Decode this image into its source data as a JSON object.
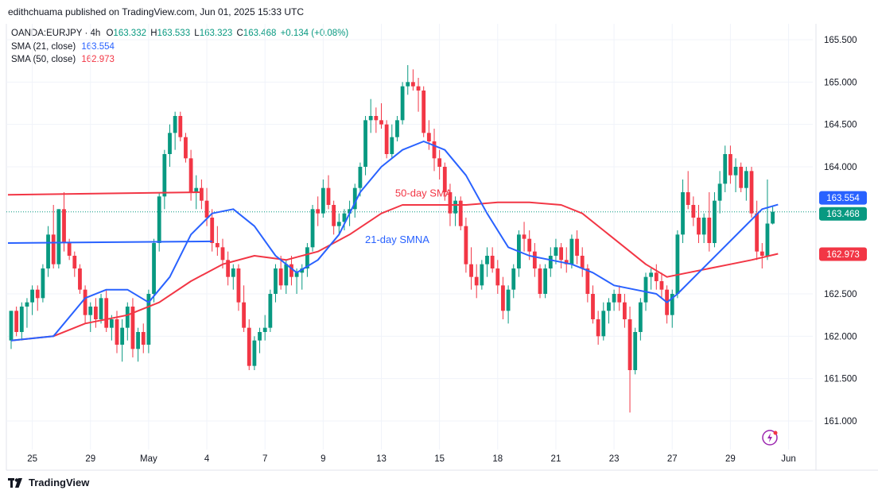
{
  "header": {
    "published": "edithchuama published on TradingView.com, Jun 01, 2025 15:33 UTC"
  },
  "legend": {
    "symbol": "OANDA:EURJPY · 4h",
    "open_label": "O",
    "open": "163.332",
    "high_label": "H",
    "high": "163.533",
    "low_label": "L",
    "low": "163.323",
    "close_label": "C",
    "close": "163.468",
    "change": "+0.134 (+0.08%)",
    "sma21_label": "SMA (21, close)",
    "sma21_value": "163.554",
    "sma50_label": "SMA (50, close)",
    "sma50_value": "162.973"
  },
  "footer": {
    "brand": "TradingView",
    "logo_icon": "tradingview-logo-icon"
  },
  "colors": {
    "up": "#089981",
    "down": "#f23645",
    "sma21": "#2962ff",
    "sma50": "#f23645",
    "grid": "#f0f3fa"
  },
  "chart_data": {
    "type": "candlestick",
    "symbol": "OANDA:EURJPY",
    "interval": "4h",
    "ylim": [
      160.7,
      165.75
    ],
    "y_ticks": [
      "165.500",
      "165.000",
      "164.500",
      "164.000",
      "162.500",
      "162.000",
      "161.500",
      "161.000"
    ],
    "x_ticks": [
      {
        "label": "25",
        "index": 4
      },
      {
        "label": "29",
        "index": 15
      },
      {
        "label": "May",
        "index": 26
      },
      {
        "label": "4",
        "index": 37
      },
      {
        "label": "7",
        "index": 48
      },
      {
        "label": "9",
        "index": 59
      },
      {
        "label": "13",
        "index": 70
      },
      {
        "label": "15",
        "index": 81
      },
      {
        "label": "18",
        "index": 92
      },
      {
        "label": "21",
        "index": 103
      },
      {
        "label": "23",
        "index": 114
      },
      {
        "label": "27",
        "index": 125
      },
      {
        "label": "29",
        "index": 136
      },
      {
        "label": "Jun",
        "index": 147
      }
    ],
    "price_labels": [
      {
        "value": 163.554,
        "text": "163.554",
        "color": "#2962ff"
      },
      {
        "value": 163.468,
        "text": "163.468",
        "color": "#089981"
      },
      {
        "value": 162.973,
        "text": "162.973",
        "color": "#f23645"
      }
    ],
    "candles": [
      [
        161.95,
        162.3,
        161.85,
        162.3
      ],
      [
        162.3,
        162.35,
        162.0,
        162.05
      ],
      [
        162.05,
        162.4,
        161.95,
        162.35
      ],
      [
        162.35,
        162.45,
        162.1,
        162.4
      ],
      [
        162.4,
        162.6,
        162.25,
        162.55
      ],
      [
        162.55,
        162.6,
        162.3,
        162.45
      ],
      [
        162.45,
        162.85,
        162.4,
        162.8
      ],
      [
        162.8,
        163.3,
        162.7,
        163.2
      ],
      [
        163.2,
        163.55,
        162.8,
        162.85
      ],
      [
        162.85,
        163.5,
        162.8,
        163.5
      ],
      [
        163.5,
        163.7,
        163.0,
        163.1
      ],
      [
        163.1,
        163.15,
        162.9,
        162.95
      ],
      [
        162.95,
        163.0,
        162.7,
        162.8
      ],
      [
        162.8,
        162.85,
        162.5,
        162.55
      ],
      [
        162.55,
        162.6,
        162.15,
        162.25
      ],
      [
        162.25,
        162.4,
        162.05,
        162.35
      ],
      [
        162.35,
        162.45,
        162.1,
        162.2
      ],
      [
        162.2,
        162.5,
        162.15,
        162.45
      ],
      [
        162.45,
        162.55,
        162.05,
        162.1
      ],
      [
        162.1,
        162.25,
        161.95,
        162.2
      ],
      [
        162.2,
        162.3,
        161.8,
        161.9
      ],
      [
        161.9,
        162.2,
        161.7,
        162.1
      ],
      [
        162.1,
        162.4,
        161.95,
        162.35
      ],
      [
        162.35,
        162.45,
        161.75,
        161.85
      ],
      [
        161.85,
        162.1,
        161.7,
        162.05
      ],
      [
        162.05,
        162.15,
        161.8,
        161.9
      ],
      [
        161.9,
        162.55,
        161.8,
        162.5
      ],
      [
        162.5,
        163.15,
        162.4,
        163.1
      ],
      [
        163.1,
        163.7,
        163.0,
        163.65
      ],
      [
        163.65,
        164.2,
        163.5,
        164.15
      ],
      [
        164.15,
        164.5,
        164.0,
        164.4
      ],
      [
        164.4,
        164.65,
        164.2,
        164.6
      ],
      [
        164.6,
        164.65,
        164.3,
        164.35
      ],
      [
        164.35,
        164.4,
        164.05,
        164.1
      ],
      [
        164.1,
        164.2,
        163.6,
        163.7
      ],
      [
        163.7,
        163.9,
        163.5,
        163.75
      ],
      [
        163.75,
        163.85,
        163.5,
        163.6
      ],
      [
        163.6,
        163.75,
        163.3,
        163.4
      ],
      [
        163.4,
        163.5,
        163.0,
        163.1
      ],
      [
        163.1,
        163.3,
        162.95,
        163.05
      ],
      [
        163.05,
        163.15,
        162.8,
        162.9
      ],
      [
        162.9,
        163.0,
        162.6,
        162.7
      ],
      [
        162.7,
        162.85,
        162.55,
        162.8
      ],
      [
        162.8,
        162.85,
        162.3,
        162.4
      ],
      [
        162.4,
        162.6,
        162.05,
        162.1
      ],
      [
        162.1,
        162.2,
        161.6,
        161.65
      ],
      [
        161.65,
        162.0,
        161.6,
        161.95
      ],
      [
        161.95,
        162.1,
        161.8,
        162.05
      ],
      [
        162.05,
        162.25,
        161.95,
        162.1
      ],
      [
        162.1,
        162.55,
        162.05,
        162.5
      ],
      [
        162.5,
        162.85,
        162.4,
        162.8
      ],
      [
        162.8,
        162.95,
        162.55,
        162.6
      ],
      [
        162.6,
        162.9,
        162.5,
        162.85
      ],
      [
        162.85,
        162.95,
        162.6,
        162.7
      ],
      [
        162.7,
        162.8,
        162.5,
        162.75
      ],
      [
        162.75,
        162.85,
        162.55,
        162.8
      ],
      [
        162.8,
        163.1,
        162.7,
        163.05
      ],
      [
        163.05,
        163.55,
        163.0,
        163.5
      ],
      [
        163.5,
        163.65,
        163.3,
        163.45
      ],
      [
        163.45,
        163.85,
        163.4,
        163.75
      ],
      [
        163.75,
        163.9,
        163.5,
        163.55
      ],
      [
        163.55,
        163.6,
        163.2,
        163.3
      ],
      [
        163.3,
        163.45,
        163.2,
        163.35
      ],
      [
        163.35,
        163.5,
        163.25,
        163.45
      ],
      [
        163.45,
        163.6,
        163.3,
        163.5
      ],
      [
        163.5,
        163.8,
        163.4,
        163.75
      ],
      [
        163.75,
        164.05,
        163.65,
        164.0
      ],
      [
        164.0,
        164.6,
        163.9,
        164.55
      ],
      [
        164.55,
        164.8,
        164.4,
        164.6
      ],
      [
        164.6,
        164.7,
        164.4,
        164.55
      ],
      [
        164.55,
        164.75,
        164.45,
        164.5
      ],
      [
        164.5,
        164.55,
        164.1,
        164.15
      ],
      [
        164.15,
        164.5,
        164.1,
        164.35
      ],
      [
        164.35,
        164.6,
        164.3,
        164.55
      ],
      [
        164.55,
        165.0,
        164.5,
        164.95
      ],
      [
        164.95,
        165.2,
        164.85,
        165.0
      ],
      [
        165.0,
        165.15,
        164.9,
        164.95
      ],
      [
        164.95,
        165.05,
        164.65,
        164.9
      ],
      [
        164.9,
        164.95,
        164.35,
        164.4
      ],
      [
        164.4,
        164.55,
        164.2,
        164.3
      ],
      [
        164.3,
        164.45,
        163.95,
        164.1
      ],
      [
        164.1,
        164.2,
        163.85,
        164.0
      ],
      [
        164.0,
        164.05,
        163.6,
        163.7
      ],
      [
        163.7,
        163.8,
        163.3,
        163.45
      ],
      [
        163.45,
        163.65,
        163.3,
        163.6
      ],
      [
        163.6,
        163.65,
        163.25,
        163.3
      ],
      [
        163.3,
        163.4,
        162.75,
        162.85
      ],
      [
        162.85,
        163.05,
        162.55,
        162.7
      ],
      [
        162.7,
        162.85,
        162.45,
        162.6
      ],
      [
        162.6,
        162.9,
        162.55,
        162.85
      ],
      [
        162.85,
        163.05,
        162.7,
        162.95
      ],
      [
        162.95,
        163.05,
        162.75,
        162.8
      ],
      [
        162.8,
        162.9,
        162.5,
        162.6
      ],
      [
        162.6,
        162.7,
        162.2,
        162.3
      ],
      [
        162.3,
        162.6,
        162.15,
        162.55
      ],
      [
        162.55,
        162.85,
        162.45,
        162.8
      ],
      [
        162.8,
        163.25,
        162.7,
        163.2
      ],
      [
        163.2,
        163.35,
        163.0,
        163.15
      ],
      [
        163.15,
        163.25,
        162.9,
        163.0
      ],
      [
        163.0,
        163.1,
        162.7,
        162.8
      ],
      [
        162.8,
        162.85,
        162.45,
        162.5
      ],
      [
        162.5,
        162.85,
        162.45,
        162.8
      ],
      [
        162.8,
        163.05,
        162.7,
        162.95
      ],
      [
        162.95,
        163.15,
        162.85,
        163.05
      ],
      [
        163.05,
        163.1,
        162.8,
        162.9
      ],
      [
        162.9,
        163.05,
        162.75,
        162.85
      ],
      [
        162.85,
        163.2,
        162.8,
        163.15
      ],
      [
        163.15,
        163.25,
        162.85,
        162.95
      ],
      [
        162.95,
        163.05,
        162.7,
        162.8
      ],
      [
        162.8,
        162.85,
        162.4,
        162.5
      ],
      [
        162.5,
        162.6,
        162.15,
        162.2
      ],
      [
        162.2,
        162.3,
        161.9,
        162.0
      ],
      [
        162.0,
        162.4,
        161.95,
        162.3
      ],
      [
        162.3,
        162.45,
        162.15,
        162.4
      ],
      [
        162.4,
        162.55,
        162.3,
        162.5
      ],
      [
        162.5,
        162.6,
        162.3,
        162.4
      ],
      [
        162.4,
        162.5,
        162.1,
        162.2
      ],
      [
        162.2,
        162.35,
        161.1,
        161.6
      ],
      [
        161.6,
        162.1,
        161.55,
        162.05
      ],
      [
        162.05,
        162.45,
        161.95,
        162.4
      ],
      [
        162.4,
        162.75,
        162.3,
        162.7
      ],
      [
        162.7,
        162.8,
        162.55,
        162.75
      ],
      [
        162.75,
        162.85,
        162.55,
        162.65
      ],
      [
        162.65,
        162.75,
        162.45,
        162.55
      ],
      [
        162.55,
        162.6,
        162.15,
        162.25
      ],
      [
        162.25,
        162.55,
        162.1,
        162.5
      ],
      [
        162.5,
        163.25,
        162.45,
        163.2
      ],
      [
        163.2,
        163.85,
        163.1,
        163.7
      ],
      [
        163.7,
        163.95,
        163.5,
        163.55
      ],
      [
        163.55,
        163.65,
        163.3,
        163.4
      ],
      [
        163.4,
        163.55,
        163.1,
        163.2
      ],
      [
        163.2,
        163.45,
        163.1,
        163.4
      ],
      [
        163.4,
        163.7,
        163.0,
        163.1
      ],
      [
        163.1,
        163.7,
        163.05,
        163.6
      ],
      [
        163.6,
        163.95,
        163.45,
        163.8
      ],
      [
        163.8,
        164.25,
        163.7,
        164.15
      ],
      [
        164.15,
        164.25,
        163.8,
        163.9
      ],
      [
        163.9,
        164.1,
        163.7,
        164.0
      ],
      [
        164.0,
        164.05,
        163.7,
        163.75
      ],
      [
        163.75,
        164.0,
        163.6,
        163.95
      ],
      [
        163.95,
        164.0,
        163.4,
        163.45
      ],
      [
        163.45,
        163.6,
        162.9,
        163.0
      ],
      [
        163.0,
        163.1,
        162.8,
        162.95
      ],
      [
        162.95,
        163.85,
        162.9,
        163.33
      ],
      [
        163.33,
        163.53,
        163.32,
        163.47
      ]
    ],
    "sma21": [
      [
        0,
        161.95
      ],
      [
        8,
        162.0
      ],
      [
        14,
        162.45
      ],
      [
        18,
        162.55
      ],
      [
        22,
        162.55
      ],
      [
        26,
        162.4
      ],
      [
        30,
        162.7
      ],
      [
        34,
        163.2
      ],
      [
        38,
        163.45
      ],
      [
        42,
        163.5
      ],
      [
        46,
        163.3
      ],
      [
        50,
        162.95
      ],
      [
        54,
        162.75
      ],
      [
        58,
        162.9
      ],
      [
        62,
        163.2
      ],
      [
        66,
        163.7
      ],
      [
        70,
        164.0
      ],
      [
        74,
        164.2
      ],
      [
        78,
        164.3
      ],
      [
        82,
        164.2
      ],
      [
        86,
        163.9
      ],
      [
        90,
        163.45
      ],
      [
        94,
        163.05
      ],
      [
        98,
        162.95
      ],
      [
        102,
        162.9
      ],
      [
        106,
        162.85
      ],
      [
        110,
        162.75
      ],
      [
        114,
        162.6
      ],
      [
        118,
        162.55
      ],
      [
        122,
        162.5
      ],
      [
        124,
        162.4
      ],
      [
        126,
        162.5
      ],
      [
        130,
        162.75
      ],
      [
        134,
        163.0
      ],
      [
        138,
        163.25
      ],
      [
        142,
        163.5
      ],
      [
        145,
        163.554
      ]
    ],
    "sma50": [
      [
        0,
        161.95
      ],
      [
        8,
        162.0
      ],
      [
        14,
        162.15
      ],
      [
        22,
        162.25
      ],
      [
        28,
        162.4
      ],
      [
        34,
        162.65
      ],
      [
        40,
        162.85
      ],
      [
        46,
        162.95
      ],
      [
        52,
        162.9
      ],
      [
        58,
        163.0
      ],
      [
        64,
        163.2
      ],
      [
        70,
        163.45
      ],
      [
        74,
        163.55
      ],
      [
        80,
        163.55
      ],
      [
        86,
        163.55
      ],
      [
        92,
        163.58
      ],
      [
        98,
        163.58
      ],
      [
        104,
        163.55
      ],
      [
        108,
        163.45
      ],
      [
        112,
        163.25
      ],
      [
        116,
        163.05
      ],
      [
        120,
        162.85
      ],
      [
        124,
        162.7
      ],
      [
        128,
        162.75
      ],
      [
        132,
        162.8
      ],
      [
        136,
        162.85
      ],
      [
        140,
        162.9
      ],
      [
        145,
        162.973
      ]
    ],
    "annotations": [
      {
        "text": "50-day SMA",
        "x_index": 78,
        "y": 163.65,
        "color": "#f23645"
      },
      {
        "text": "21-day SMNA",
        "x_index": 73,
        "y": 163.1,
        "color": "#2962ff"
      }
    ],
    "drawn_lines": [
      {
        "color": "#f23645",
        "x1": 0,
        "y1": 163.67,
        "x2": 36,
        "y2": 163.7
      },
      {
        "color": "#2962ff",
        "x1": 0,
        "y1": 163.1,
        "x2": 38,
        "y2": 163.12
      }
    ],
    "last_price_line": 163.468
  }
}
